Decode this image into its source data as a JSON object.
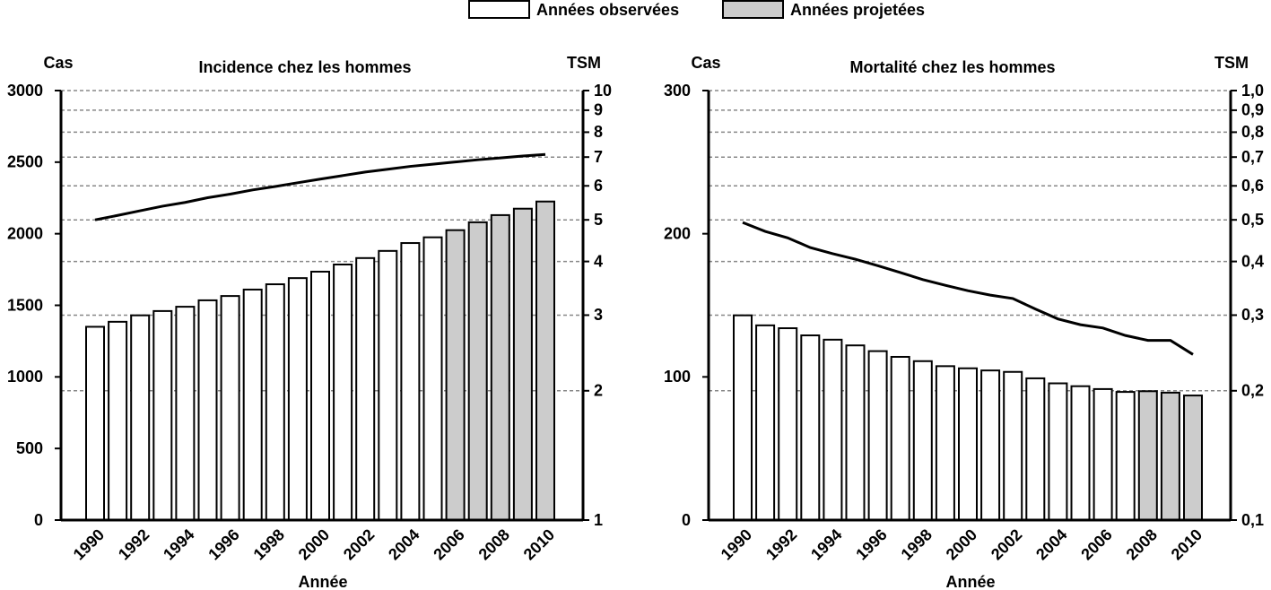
{
  "legend": [
    {
      "name": "Années observées",
      "color": "#ffffff"
    },
    {
      "name": "Années projetées",
      "color": "#cccccc"
    }
  ],
  "chart_data": [
    {
      "type": "bar",
      "title": "Incidence chez les hommes",
      "ylabel": "Cas",
      "y2label": "TSM",
      "xlabel": "Année",
      "categories": [
        "1990",
        null,
        "1992",
        null,
        "1994",
        null,
        "1996",
        null,
        "1998",
        null,
        "2000",
        null,
        "2002",
        null,
        "2004",
        null,
        "2006",
        null,
        "2008",
        null,
        "2010"
      ],
      "series": [
        {
          "color": "#ffffff",
          "values": [
            1350,
            1385,
            1430,
            1460,
            1490,
            1535,
            1565,
            1610,
            1647,
            1690,
            1735,
            1785,
            1830,
            1880,
            1935,
            1975,
            null,
            null,
            null,
            null,
            null
          ]
        },
        {
          "color": "#cccccc",
          "values": [
            null,
            null,
            null,
            null,
            null,
            null,
            null,
            null,
            null,
            null,
            null,
            null,
            null,
            null,
            null,
            null,
            2025,
            2080,
            2130,
            2175,
            2225
          ]
        },
        {
          "type": "line",
          "axis": "y2",
          "color": "#000000",
          "values": [
            5.0,
            5.12,
            5.25,
            5.38,
            5.49,
            5.63,
            5.74,
            5.87,
            5.98,
            6.1,
            6.22,
            6.34,
            6.46,
            6.56,
            6.66,
            6.74,
            6.82,
            6.9,
            6.97,
            7.04,
            7.1
          ]
        }
      ],
      "ylim": [
        0,
        3000
      ],
      "yticks": [
        0,
        500,
        1000,
        1500,
        2000,
        2500,
        3000
      ],
      "y2lim": [
        1,
        10
      ],
      "y2scale": "log",
      "y2ticks": [
        1,
        2,
        3,
        4,
        5,
        6,
        7,
        8,
        9,
        10
      ],
      "grid": true
    },
    {
      "type": "bar",
      "title": "Mortalité chez les hommes",
      "ylabel": "Cas",
      "y2label": "TSM",
      "xlabel": "Année",
      "categories": [
        "1990",
        null,
        "1992",
        null,
        "1994",
        null,
        "1996",
        null,
        "1998",
        null,
        "2000",
        null,
        "2002",
        null,
        "2004",
        null,
        "2006",
        null,
        "2008",
        null,
        "2010"
      ],
      "series": [
        {
          "color": "#ffffff",
          "values": [
            143,
            136,
            134,
            129,
            126,
            122,
            118,
            114,
            111,
            107.5,
            106,
            104.5,
            103.5,
            99,
            95.5,
            93.5,
            91.5,
            89.5,
            null,
            null,
            null
          ]
        },
        {
          "color": "#cccccc",
          "values": [
            null,
            null,
            null,
            null,
            null,
            null,
            null,
            null,
            null,
            null,
            null,
            null,
            null,
            null,
            null,
            null,
            null,
            null,
            90,
            89,
            87
          ]
        },
        {
          "type": "line",
          "axis": "y2",
          "color": "#000000",
          "values": [
            0.493,
            0.47,
            0.454,
            0.431,
            0.417,
            0.405,
            0.391,
            0.377,
            0.363,
            0.352,
            0.342,
            0.334,
            0.328,
            0.31,
            0.294,
            0.285,
            0.28,
            0.269,
            0.262,
            0.262,
            0.243
          ]
        }
      ],
      "ylim": [
        0,
        300
      ],
      "yticks": [
        0,
        100,
        200,
        300
      ],
      "y2lim": [
        0.1,
        1.0
      ],
      "y2scale": "log",
      "y2ticks": [
        {
          "value": 0.1,
          "label": "0,1"
        },
        {
          "value": 0.2,
          "label": "0,2"
        },
        {
          "value": 0.3,
          "label": "0,3"
        },
        {
          "value": 0.4,
          "label": "0,4"
        },
        {
          "value": 0.5,
          "label": "0,5"
        },
        {
          "value": 0.6,
          "label": "0,6"
        },
        {
          "value": 0.7,
          "label": "0,7"
        },
        {
          "value": 0.8,
          "label": "0,8"
        },
        {
          "value": 0.9,
          "label": "0,9"
        },
        {
          "value": 1.0,
          "label": "1,0"
        }
      ],
      "grid": true
    }
  ]
}
